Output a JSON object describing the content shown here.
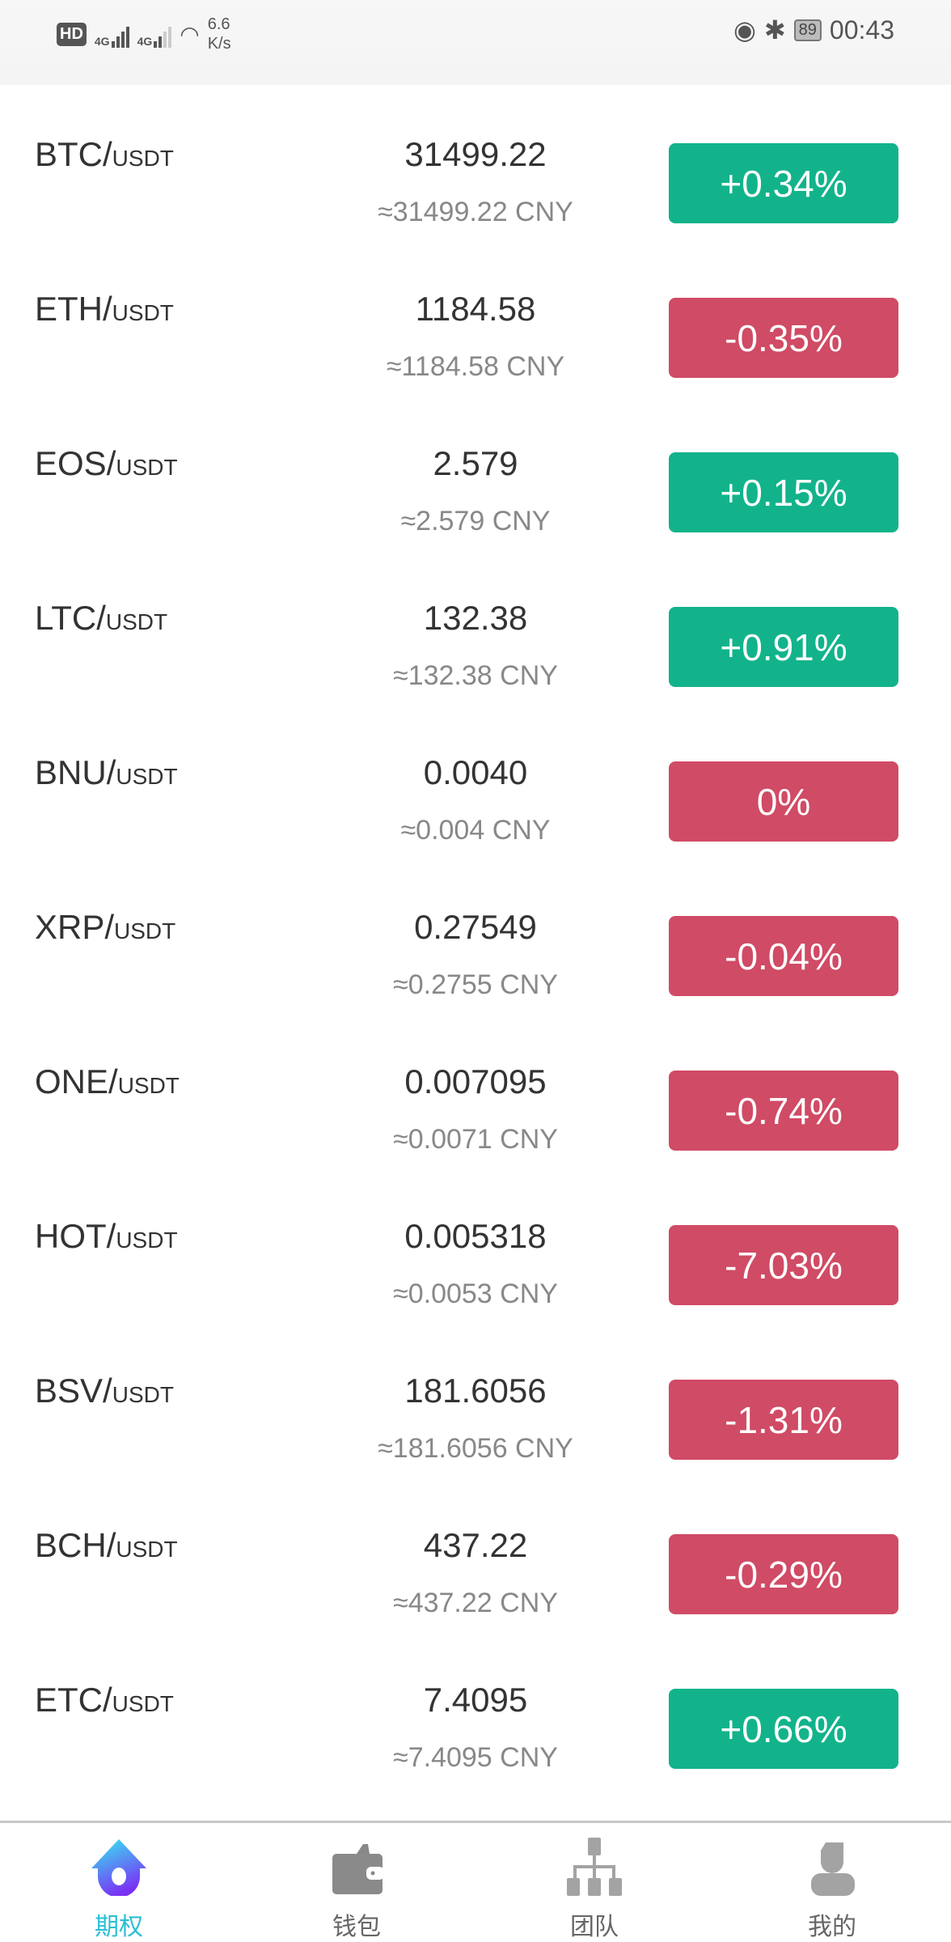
{
  "status_bar": {
    "hd": "HD",
    "sim": "1",
    "net1": "4G",
    "net2": "4G",
    "speed_value": "6.6",
    "speed_unit": "K/s",
    "battery": "89",
    "time": "00:43"
  },
  "colors": {
    "up": "#12b38b",
    "down": "#d04b65",
    "accent": "#2bbfd4"
  },
  "quote_unit": "USDT",
  "markets": [
    {
      "base": "BTC",
      "price": "31499.22",
      "cny": "≈31499.22 CNY",
      "change": "+0.34%",
      "dir": "up"
    },
    {
      "base": "ETH",
      "price": "1184.58",
      "cny": "≈1184.58 CNY",
      "change": "-0.35%",
      "dir": "down"
    },
    {
      "base": "EOS",
      "price": "2.579",
      "cny": "≈2.579 CNY",
      "change": "+0.15%",
      "dir": "up"
    },
    {
      "base": "LTC",
      "price": "132.38",
      "cny": "≈132.38 CNY",
      "change": "+0.91%",
      "dir": "up"
    },
    {
      "base": "BNU",
      "price": "0.0040",
      "cny": "≈0.004 CNY",
      "change": "0%",
      "dir": "down"
    },
    {
      "base": "XRP",
      "price": "0.27549",
      "cny": "≈0.2755 CNY",
      "change": "-0.04%",
      "dir": "down"
    },
    {
      "base": "ONE",
      "price": "0.007095",
      "cny": "≈0.0071 CNY",
      "change": "-0.74%",
      "dir": "down"
    },
    {
      "base": "HOT",
      "price": "0.005318",
      "cny": "≈0.0053 CNY",
      "change": "-7.03%",
      "dir": "down"
    },
    {
      "base": "BSV",
      "price": "181.6056",
      "cny": "≈181.6056 CNY",
      "change": "-1.31%",
      "dir": "down"
    },
    {
      "base": "BCH",
      "price": "437.22",
      "cny": "≈437.22 CNY",
      "change": "-0.29%",
      "dir": "down"
    },
    {
      "base": "ETC",
      "price": "7.4095",
      "cny": "≈7.4095 CNY",
      "change": "+0.66%",
      "dir": "up"
    }
  ],
  "nav": [
    {
      "label": "期权",
      "icon": "options-home-icon",
      "active": true
    },
    {
      "label": "钱包",
      "icon": "wallet-icon",
      "active": false
    },
    {
      "label": "团队",
      "icon": "team-hierarchy-icon",
      "active": false
    },
    {
      "label": "我的",
      "icon": "profile-icon",
      "active": false
    }
  ]
}
